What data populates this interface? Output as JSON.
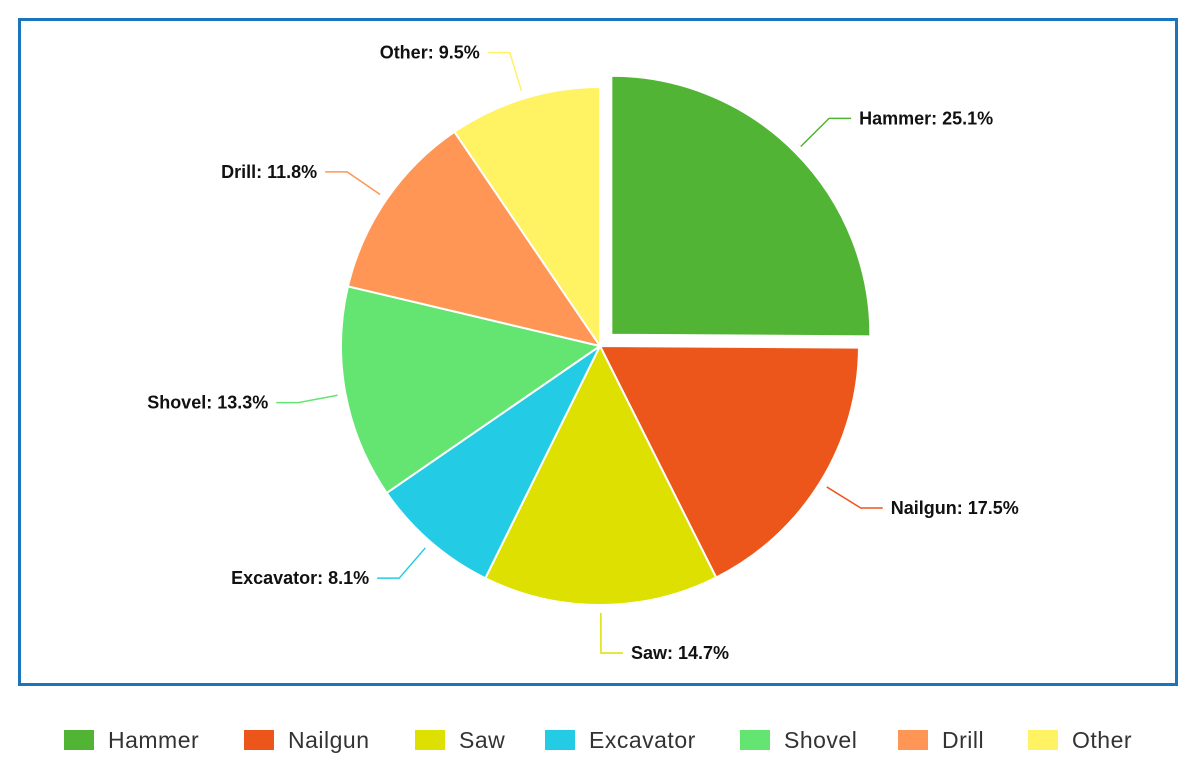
{
  "chart_data": {
    "type": "pie",
    "categories": [
      "Hammer",
      "Nailgun",
      "Saw",
      "Excavator",
      "Shovel",
      "Drill",
      "Other"
    ],
    "values": [
      25.1,
      17.5,
      14.7,
      8.1,
      13.3,
      11.8,
      9.5
    ],
    "slice_labels": [
      "Hammer: 25.1%",
      "Nailgun: 17.5%",
      "Saw: 14.7%",
      "Excavator: 8.1%",
      "Shovel: 13.3%",
      "Drill: 11.8%",
      "Other: 9.5%"
    ],
    "colors": [
      "#52b434",
      "#ed561b",
      "#dde000",
      "#24cbe5",
      "#64e572",
      "#ff9655",
      "#fff263"
    ],
    "exploded": "Hammer",
    "legend_position": "bottom",
    "border_color": "#1a75bc"
  }
}
